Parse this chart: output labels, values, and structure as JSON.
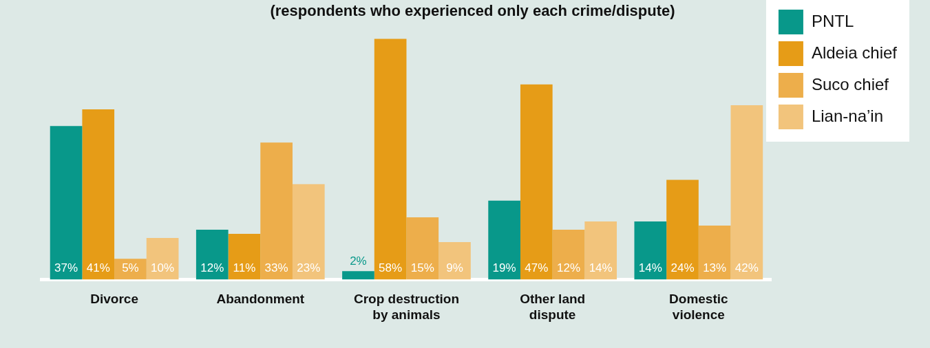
{
  "chart_data": {
    "type": "bar",
    "subtitle": "(respondents who experienced only each crime/dispute)",
    "categories": [
      "Divorce",
      "Abandonment",
      "Crop destruction by animals",
      "Other land dispute",
      "Domestic violence"
    ],
    "series": [
      {
        "name": "PNTL",
        "color": "#08988a",
        "values": [
          37,
          12,
          2,
          19,
          14
        ],
        "value_labels": [
          "37%",
          "12%",
          "2%",
          "19%",
          "14%"
        ]
      },
      {
        "name": "Aldeia chief",
        "color": "#e69c17",
        "values": [
          41,
          11,
          58,
          47,
          24
        ],
        "value_labels": [
          "41%",
          "11%",
          "58%",
          "47%",
          "24%"
        ]
      },
      {
        "name": "Suco chief",
        "color": "#edae4b",
        "values": [
          5,
          33,
          15,
          12,
          13
        ],
        "value_labels": [
          "5%",
          "33%",
          "15%",
          "12%",
          "13%"
        ]
      },
      {
        "name": "Lian-na’in",
        "color": "#f2c47c",
        "values": [
          10,
          23,
          9,
          14,
          42
        ],
        "value_labels": [
          "10%",
          "23%",
          "9%",
          "14%",
          "42%"
        ]
      }
    ],
    "legend": "top right"
  }
}
